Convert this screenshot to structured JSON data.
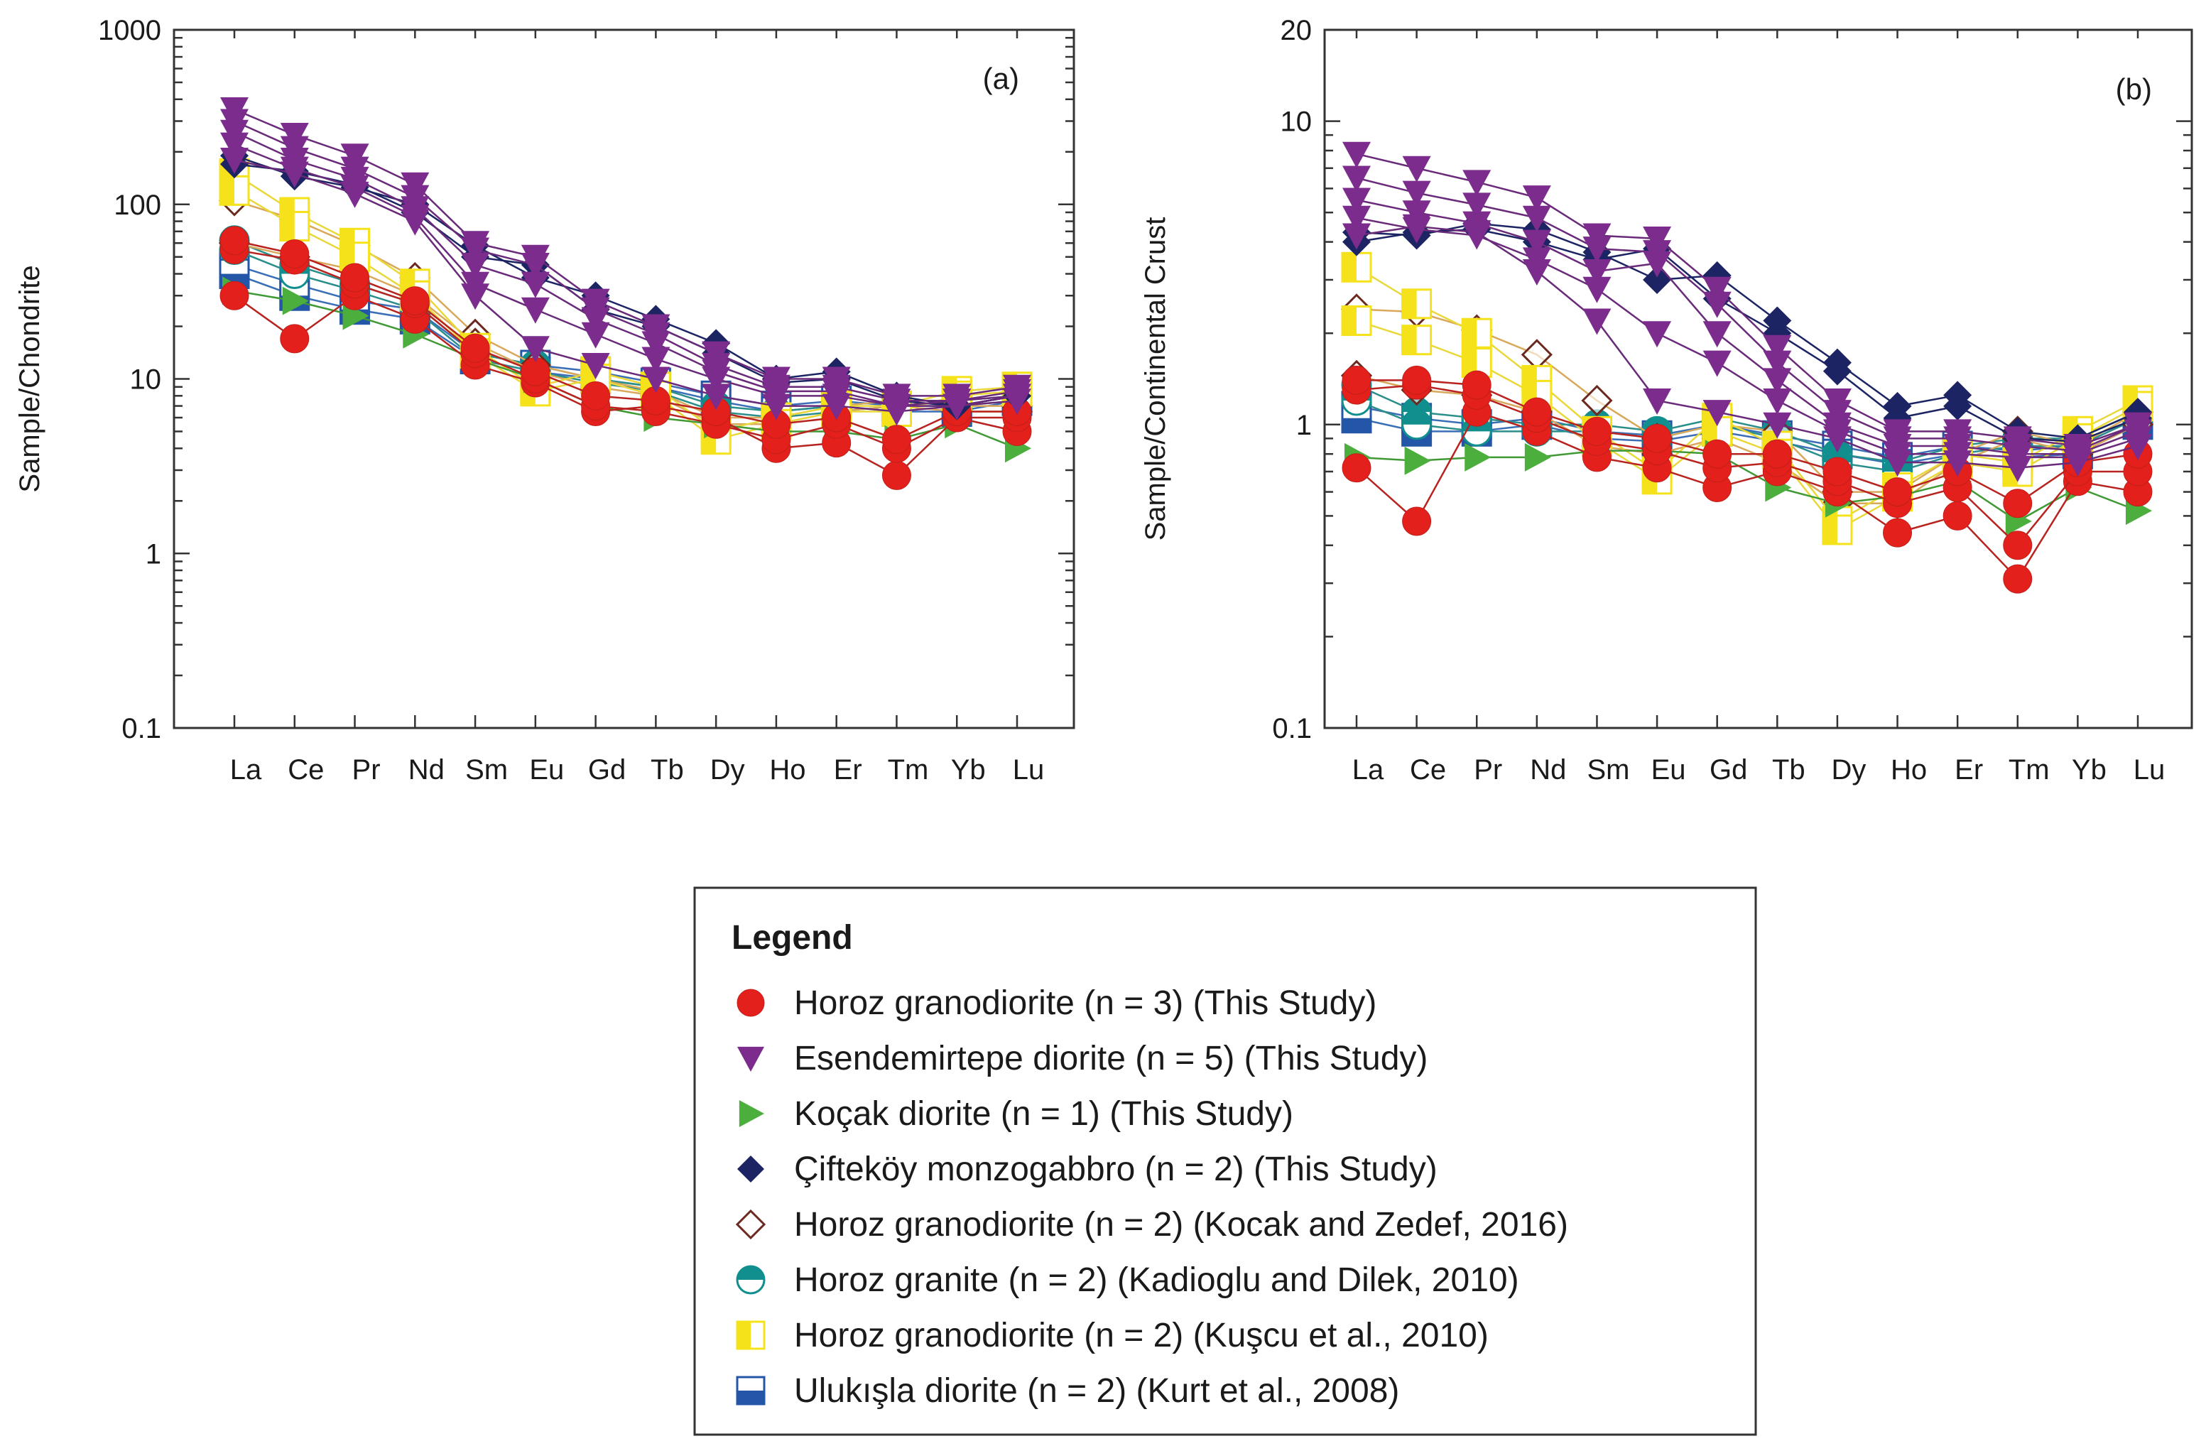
{
  "chart_data": [
    {
      "type": "line",
      "panel_label": "(a)",
      "ylabel": "Sample/Chondrite",
      "xlabel": "",
      "yscale": "log",
      "ylim": [
        0.1,
        1000
      ],
      "y_ticks": [
        "1000",
        "100",
        "10",
        "1",
        "0.1"
      ],
      "y_tick_values": [
        1000,
        100,
        10,
        1,
        0.1
      ],
      "categories": [
        "La",
        "Ce",
        "Pr",
        "Nd",
        "Sm",
        "Eu",
        "Gd",
        "Tb",
        "Dy",
        "Ho",
        "Er",
        "Tm",
        "Yb",
        "Lu"
      ],
      "series": [
        {
          "name": "Horoz granodiorite (n = 3) (This Study)",
          "group": "horoz-td",
          "values": [
            30,
            17,
            30,
            22,
            12,
            9.5,
            6.5,
            7,
            6,
            4,
            4.3,
            2.8,
            6,
            5
          ]
        },
        {
          "name": "Horoz granodiorite (n = 3) (This Study)",
          "group": "horoz-td",
          "values": [
            55,
            48,
            35,
            27,
            14,
            10,
            7,
            6.5,
            5.5,
            4.5,
            5.5,
            4,
            6,
            6
          ]
        },
        {
          "name": "Horoz granodiorite (n = 3) (This Study)",
          "group": "horoz-td",
          "values": [
            62,
            52,
            38,
            28,
            15,
            11,
            8,
            7.5,
            6.5,
            5.5,
            6,
            4.5,
            6.5,
            6.5
          ]
        },
        {
          "name": "Esendemirtepe diorite (n = 5) (This Study)",
          "group": "esen",
          "values": [
            350,
            250,
            190,
            130,
            60,
            50,
            28,
            20,
            14,
            10,
            10,
            8,
            8,
            9
          ]
        },
        {
          "name": "Esendemirtepe diorite (n = 5) (This Study)",
          "group": "esen",
          "values": [
            300,
            210,
            160,
            110,
            55,
            45,
            25,
            18,
            12,
            9,
            9,
            7.5,
            7.5,
            8.5
          ]
        },
        {
          "name": "Esendemirtepe diorite (n = 5) (This Study)",
          "group": "esen",
          "values": [
            260,
            180,
            140,
            95,
            45,
            35,
            22,
            16,
            11,
            8.5,
            8.5,
            7,
            7.5,
            8
          ]
        },
        {
          "name": "Esendemirtepe diorite (n = 5) (This Study)",
          "group": "esen",
          "values": [
            220,
            160,
            125,
            85,
            35,
            25,
            18,
            13,
            10,
            8,
            8,
            7,
            7,
            8
          ]
        },
        {
          "name": "Esendemirtepe diorite (n = 5) (This Study)",
          "group": "esen",
          "values": [
            180,
            150,
            115,
            80,
            30,
            15,
            12,
            10,
            8,
            7,
            7,
            6.5,
            7,
            7.5
          ]
        },
        {
          "name": "Koçak diorite (n = 1) (This Study)",
          "group": "kocak",
          "values": [
            32,
            28,
            23,
            18,
            13,
            10,
            7,
            6,
            5.5,
            5,
            5,
            4.5,
            5.5,
            4
          ]
        },
        {
          "name": "Çifteköy monzogabbro (n = 2) (This Study)",
          "group": "cif",
          "values": [
            190,
            145,
            125,
            100,
            58,
            38,
            30,
            22,
            16,
            10,
            11,
            8,
            7,
            8
          ]
        },
        {
          "name": "Çifteköy monzogabbro (n = 2) (This Study)",
          "group": "cif",
          "values": [
            170,
            155,
            130,
            90,
            50,
            45,
            25,
            20,
            14,
            9.5,
            10,
            7.5,
            7,
            8
          ]
        },
        {
          "name": "Horoz granodiorite (n = 2) (Kocak and Zedef, 2016)",
          "group": "kz",
          "values": [
            105,
            82,
            58,
            38,
            18,
            12,
            10,
            8.5,
            6,
            6,
            7,
            7.5,
            7,
            7
          ]
        },
        {
          "name": "Horoz granodiorite (n = 2) (Kocak and Zedef, 2016)",
          "group": "kz",
          "values": [
            60,
            50,
            42,
            30,
            16,
            11,
            9,
            8,
            5.5,
            5.5,
            6.5,
            7,
            6.5,
            6.5
          ]
        },
        {
          "name": "Horoz granite (n = 2) (Kadioglu and Dilek, 2010)",
          "group": "kd",
          "values": [
            62,
            45,
            35,
            27,
            14,
            12,
            10,
            9,
            7,
            6.5,
            7,
            7.5,
            7.5,
            8
          ]
        },
        {
          "name": "Horoz granite (n = 2) (Kadioglu and Dilek, 2010)",
          "group": "kd",
          "values": [
            55,
            40,
            32,
            25,
            13,
            11,
            9.5,
            8.5,
            6.5,
            6,
            6.5,
            7,
            7,
            7.5
          ]
        },
        {
          "name": "Horoz granodiorite (n = 2) (Kuşcu et al., 2010)",
          "group": "ku",
          "values": [
            150,
            90,
            60,
            35,
            15,
            9,
            11,
            9,
            5,
            6,
            7,
            7,
            8.5,
            9
          ]
        },
        {
          "name": "Horoz granodiorite (n = 2) (Kuşcu et al., 2010)",
          "group": "ku",
          "values": [
            120,
            75,
            50,
            30,
            14,
            8.5,
            10,
            8,
            4.5,
            5.5,
            6.5,
            6.5,
            8,
            8.5
          ]
        },
        {
          "name": "Ulukışla diorite (n = 2) (Kurt et al., 2008)",
          "group": "uk",
          "values": [
            45,
            35,
            28,
            25,
            14,
            12,
            11,
            9.5,
            8,
            7,
            7.5,
            7,
            7,
            8
          ]
        },
        {
          "name": "Ulukışla diorite (n = 2) (Kurt et al., 2008)",
          "group": "uk",
          "values": [
            40,
            30,
            25,
            22,
            13,
            11,
            10,
            9,
            7.5,
            6.5,
            7,
            6.5,
            6.5,
            7.5
          ]
        }
      ]
    },
    {
      "type": "line",
      "panel_label": "(b)",
      "ylabel": "Sample/Continental Crust",
      "xlabel": "",
      "yscale": "log",
      "ylim": [
        0.1,
        20
      ],
      "y_ticks": [
        "20",
        "10",
        "1",
        "0.1"
      ],
      "y_tick_values": [
        20,
        10,
        1,
        0.1
      ],
      "categories": [
        "La",
        "Ce",
        "Pr",
        "Nd",
        "Sm",
        "Eu",
        "Gd",
        "Tb",
        "Dy",
        "Ho",
        "Er",
        "Tm",
        "Yb",
        "Lu"
      ],
      "series": [
        {
          "name": "Horoz granodiorite (n = 3) (This Study)",
          "group": "horoz-td",
          "values": [
            0.72,
            0.48,
            1.1,
            0.95,
            0.78,
            0.72,
            0.62,
            0.7,
            0.6,
            0.44,
            0.5,
            0.31,
            0.65,
            0.6
          ]
        },
        {
          "name": "Horoz granodiorite (n = 3) (This Study)",
          "group": "horoz-td",
          "values": [
            1.3,
            1.35,
            1.25,
            1.05,
            0.88,
            0.82,
            0.72,
            0.75,
            0.65,
            0.55,
            0.62,
            0.4,
            0.7,
            0.7
          ]
        },
        {
          "name": "Horoz granodiorite (n = 3) (This Study)",
          "group": "horoz-td",
          "values": [
            1.4,
            1.4,
            1.35,
            1.1,
            0.95,
            0.9,
            0.8,
            0.8,
            0.7,
            0.6,
            0.7,
            0.55,
            0.75,
            0.8
          ]
        },
        {
          "name": "Esendemirtepe diorite (n = 5) (This Study)",
          "group": "esen",
          "values": [
            7.8,
            7.0,
            6.3,
            5.6,
            4.2,
            4.1,
            2.8,
            1.8,
            1.2,
            0.95,
            0.95,
            0.9,
            0.85,
            1.0
          ]
        },
        {
          "name": "Esendemirtepe diorite (n = 5) (This Study)",
          "group": "esen",
          "values": [
            6.5,
            5.8,
            5.3,
            4.8,
            3.8,
            3.7,
            2.5,
            1.6,
            1.1,
            0.9,
            0.9,
            0.85,
            0.82,
            1.0
          ]
        },
        {
          "name": "Esendemirtepe diorite (n = 5) (This Study)",
          "group": "esen",
          "values": [
            5.5,
            5.0,
            4.6,
            4.0,
            3.2,
            3.4,
            2.0,
            1.4,
            1.0,
            0.85,
            0.85,
            0.8,
            0.8,
            0.95
          ]
        },
        {
          "name": "Esendemirtepe diorite (n = 5) (This Study)",
          "group": "esen",
          "values": [
            4.8,
            4.4,
            4.2,
            3.5,
            2.8,
            2.0,
            1.6,
            1.2,
            0.95,
            0.8,
            0.8,
            0.78,
            0.78,
            0.9
          ]
        },
        {
          "name": "Esendemirtepe diorite (n = 5) (This Study)",
          "group": "esen",
          "values": [
            4.2,
            4.5,
            4.3,
            3.2,
            2.2,
            1.2,
            1.1,
            1.0,
            0.9,
            0.75,
            0.75,
            0.72,
            0.75,
            0.85
          ]
        },
        {
          "name": "Koçak diorite (n = 1) (This Study)",
          "group": "kocak",
          "values": [
            0.78,
            0.76,
            0.78,
            0.78,
            0.82,
            0.82,
            0.8,
            0.62,
            0.55,
            0.58,
            0.65,
            0.48,
            0.62,
            0.52
          ]
        },
        {
          "name": "Çifteköy monzogabbro (n = 2) (This Study)",
          "group": "cif",
          "values": [
            4.3,
            4.2,
            4.6,
            4.4,
            3.7,
            3.0,
            3.1,
            2.2,
            1.6,
            1.15,
            1.25,
            0.95,
            0.9,
            1.1
          ]
        },
        {
          "name": "Çifteköy monzogabbro (n = 2) (This Study)",
          "group": "cif",
          "values": [
            4.0,
            4.3,
            4.4,
            4.0,
            3.5,
            3.8,
            2.6,
            2.0,
            1.5,
            1.05,
            1.15,
            0.9,
            0.88,
            1.05
          ]
        },
        {
          "name": "Horoz granodiorite (n = 2) (Kocak and Zedef, 2016)",
          "group": "kz",
          "values": [
            2.4,
            2.35,
            2.05,
            1.7,
            1.2,
            0.9,
            1.0,
            0.95,
            0.6,
            0.6,
            0.8,
            0.95,
            0.85,
            1.1
          ]
        },
        {
          "name": "Horoz granodiorite (n = 2) (Kocak and Zedef, 2016)",
          "group": "kz",
          "values": [
            1.45,
            1.3,
            1.25,
            1.1,
            0.85,
            0.8,
            0.9,
            0.75,
            0.55,
            0.55,
            0.75,
            0.9,
            0.8,
            1.0
          ]
        },
        {
          "name": "Horoz granite (n = 2) (Kadioglu and Dilek, 2010)",
          "group": "kd",
          "values": [
            1.35,
            1.1,
            1.05,
            1.0,
            1.0,
            0.95,
            1.05,
            0.95,
            0.8,
            0.75,
            0.85,
            0.9,
            0.9,
            1.1
          ]
        },
        {
          "name": "Horoz granite (n = 2) (Kadioglu and Dilek, 2010)",
          "group": "kd",
          "values": [
            1.2,
            1.0,
            0.95,
            0.95,
            0.95,
            0.9,
            1.0,
            0.9,
            0.75,
            0.7,
            0.8,
            0.85,
            0.85,
            1.05
          ]
        },
        {
          "name": "Horoz granodiorite (n = 2) (Kuşcu et al., 2010)",
          "group": "ku",
          "values": [
            3.3,
            2.5,
            2.0,
            1.4,
            0.95,
            0.7,
            1.05,
            0.85,
            0.48,
            0.62,
            0.8,
            0.75,
            0.95,
            1.2
          ]
        },
        {
          "name": "Horoz granodiorite (n = 2) (Kuşcu et al., 2010)",
          "group": "ku",
          "values": [
            2.2,
            1.9,
            1.6,
            1.25,
            0.88,
            0.66,
            0.95,
            0.8,
            0.45,
            0.58,
            0.75,
            0.7,
            0.9,
            1.15
          ]
        },
        {
          "name": "Ulukışla diorite (n = 2) (Kurt et al., 2008)",
          "group": "uk",
          "values": [
            1.15,
            1.05,
            1.0,
            1.05,
            0.95,
            0.92,
            1.0,
            0.92,
            0.85,
            0.78,
            0.85,
            0.82,
            0.85,
            1.05
          ]
        },
        {
          "name": "Ulukışla diorite (n = 2) (Kurt et al., 2008)",
          "group": "uk",
          "values": [
            1.05,
            0.95,
            0.95,
            1.0,
            0.9,
            0.88,
            0.95,
            0.88,
            0.8,
            0.74,
            0.8,
            0.78,
            0.8,
            1.0
          ]
        }
      ]
    }
  ],
  "styles": {
    "horoz-td": {
      "marker": "circle",
      "color": "#e3201b",
      "line": "#b8231f"
    },
    "esen": {
      "marker": "triangle-down",
      "color": "#7b2c8c",
      "line": "#6a2a7a"
    },
    "kocak": {
      "marker": "triangle-right",
      "color": "#4cae3c",
      "line": "#3f9a34"
    },
    "cif": {
      "marker": "diamond",
      "color": "#1c2463",
      "line": "#1c2463"
    },
    "kz": {
      "marker": "diamond-open",
      "color": "#6b2a1f",
      "line": "#d9a85a"
    },
    "kd": {
      "marker": "circle-half",
      "color": "#118e8e",
      "line": "#2a8f8a"
    },
    "ku": {
      "marker": "square-half",
      "color": "#f5e21a",
      "line": "#e8d83a"
    },
    "uk": {
      "marker": "square-half-blue",
      "color": "#2456a8",
      "line": "#3a6fb7"
    }
  },
  "legend": {
    "title": "Legend",
    "items": [
      {
        "group": "horoz-td",
        "label": "Horoz granodiorite (n = 3) (This Study)"
      },
      {
        "group": "esen",
        "label": "Esendemirtepe diorite (n = 5) (This Study)"
      },
      {
        "group": "kocak",
        "label": "Koçak diorite (n = 1) (This Study)"
      },
      {
        "group": "cif",
        "label": "Çifteköy monzogabbro (n = 2) (This Study)"
      },
      {
        "group": "kz",
        "label": "Horoz granodiorite (n = 2) (Kocak and Zedef, 2016)"
      },
      {
        "group": "kd",
        "label": "Horoz granite (n = 2) (Kadioglu and Dilek, 2010)"
      },
      {
        "group": "ku",
        "label": "Horoz granodiorite (n = 2) (Kuşcu et al., 2010)"
      },
      {
        "group": "uk",
        "label": "Ulukışla diorite (n = 2) (Kurt et al., 2008)"
      }
    ]
  }
}
